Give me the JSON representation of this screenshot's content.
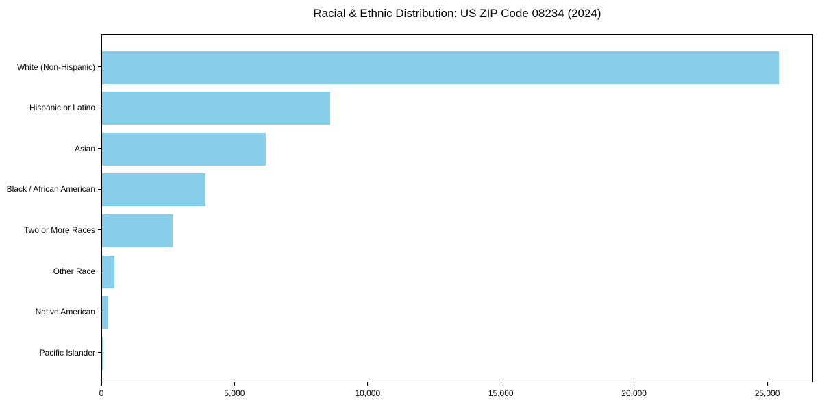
{
  "title": "Racial & Ethnic Distribution: US ZIP Code 08234 (2024)",
  "chart_data": {
    "type": "bar",
    "orientation": "horizontal",
    "title": "Racial & Ethnic Distribution: US ZIP Code 08234 (2024)",
    "xlabel": "",
    "ylabel": "",
    "categories": [
      "White (Non-Hispanic)",
      "Hispanic or Latino",
      "Asian",
      "Black / African American",
      "Two or More Races",
      "Other Race",
      "Native American",
      "Pacific Islander"
    ],
    "values": [
      25400,
      8570,
      6150,
      3880,
      2640,
      460,
      230,
      40
    ],
    "categories_order": "top-to-bottom",
    "xlim": [
      0,
      26670
    ],
    "x_ticks": [
      0,
      5000,
      10000,
      15000,
      20000,
      25000
    ],
    "x_tick_labels": [
      "0",
      "5,000",
      "10,000",
      "15,000",
      "20,000",
      "25,000"
    ],
    "bar_color": "#87CEEB",
    "border_color": "#000000",
    "grid": false,
    "legend": false,
    "background": "#ffffff"
  }
}
